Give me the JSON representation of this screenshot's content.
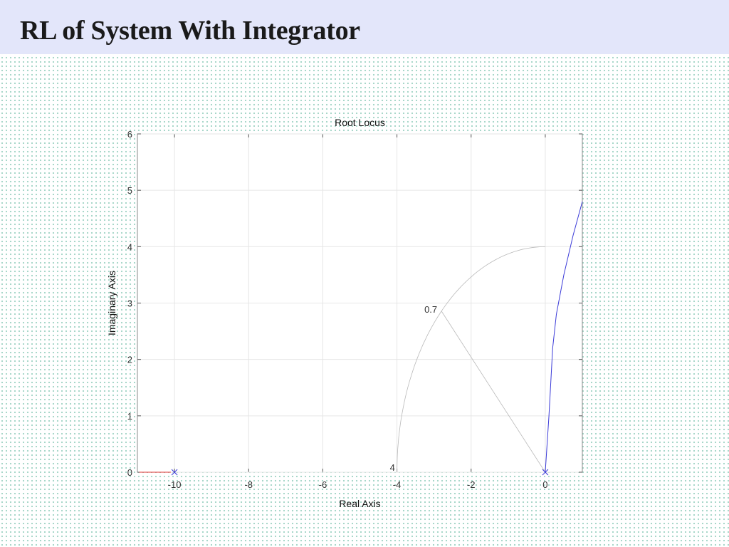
{
  "slide": {
    "title": "RL of System With Integrator"
  },
  "chart_data": {
    "type": "line",
    "title": "Root Locus",
    "xlabel": "Real Axis",
    "ylabel": "Imaginary Axis",
    "xlim": [
      -11,
      1
    ],
    "ylim": [
      0,
      6
    ],
    "xticks": [
      -10,
      -8,
      -6,
      -4,
      -2,
      0
    ],
    "yticks": [
      0,
      1,
      2,
      3,
      4,
      5,
      6
    ],
    "grid": true,
    "series": [
      {
        "color": "#3b3bd8",
        "x": [
          0,
          0.05,
          0.1,
          0.15,
          0.2,
          0.3,
          0.5,
          0.75,
          1.0
        ],
        "y": [
          0,
          0.5,
          1.0,
          1.6,
          2.2,
          2.8,
          3.5,
          4.2,
          4.8
        ]
      },
      {
        "color": "#e03030",
        "x": [
          -10.95,
          -10.1
        ],
        "y": [
          0,
          0
        ]
      }
    ],
    "poles": [
      {
        "x": -10,
        "y": 0
      },
      {
        "x": 0,
        "y": 0
      }
    ],
    "damping_ratio": {
      "zeta": 0.7,
      "label": "0.7"
    },
    "natural_frequency": {
      "wn": 4,
      "label": "4"
    }
  }
}
